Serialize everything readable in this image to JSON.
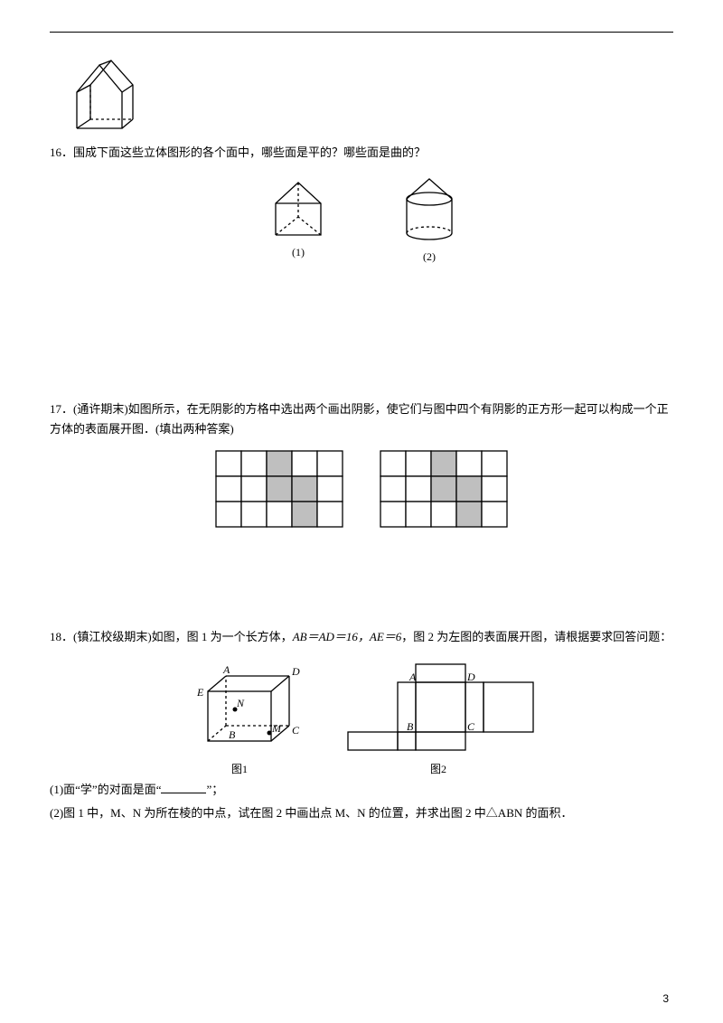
{
  "page_number": "3",
  "top_figure": {
    "type": "3d_solid",
    "description": "pentagonal-house prism"
  },
  "q16": {
    "number": "16．",
    "text": "围成下面这些立体图形的各个面中，哪些面是平的？哪些面是曲的？",
    "sub_labels": [
      "(1)",
      "(2)"
    ],
    "fig1": "triangular prism",
    "fig2": "cone on cylinder"
  },
  "q17": {
    "number": "17．",
    "prefix": "(通许期末)如图所示，在无阴影的方格中选出两个画出阴影，使它们与图中四个有阴影的正方形一起可以构成一个正方体的表面展开图．(填出两种答案)",
    "grids": {
      "rows": 3,
      "cols": 5,
      "shaded_a": [
        [
          0,
          2
        ],
        [
          1,
          2
        ],
        [
          1,
          3
        ],
        [
          2,
          3
        ]
      ],
      "shaded_b": [
        [
          0,
          2
        ],
        [
          1,
          2
        ],
        [
          1,
          3
        ],
        [
          2,
          3
        ]
      ],
      "cell_size": 28,
      "shade_color": "#bfbfbf",
      "line_color": "#000000"
    }
  },
  "q18": {
    "number": "18．",
    "prefix": "(镇江校级期末)如图，图 1 为一个长方体，",
    "eq1": "AB＝AD＝16，AE＝6",
    "mid": "，图 2 为左图的表面展开图，请根据要求回答问题：",
    "fig1_label": "图1",
    "fig2_label": "图2",
    "labels": {
      "A": "A",
      "B": "B",
      "C": "C",
      "D": "D",
      "E": "E",
      "M": "M",
      "N": "N"
    },
    "part1_pre": "(1)面“学”的对面是面“",
    "part1_post": "”；",
    "part2": "(2)图 1 中，M、N 为所在棱的中点，试在图 2 中画出点 M、N 的位置，并求出图 2 中△ABN 的面积．"
  },
  "colors": {
    "text": "#000000",
    "bg": "#ffffff",
    "shade": "#bfbfbf"
  }
}
